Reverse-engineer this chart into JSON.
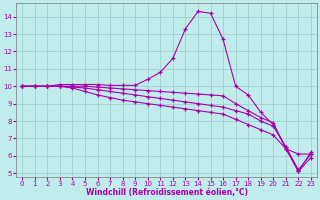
{
  "xlabel": "Windchill (Refroidissement éolien,°C)",
  "xlim": [
    -0.5,
    23.5
  ],
  "ylim": [
    4.8,
    14.8
  ],
  "xticks": [
    0,
    1,
    2,
    3,
    4,
    5,
    6,
    7,
    8,
    9,
    10,
    11,
    12,
    13,
    14,
    15,
    16,
    17,
    18,
    19,
    20,
    21,
    22,
    23
  ],
  "yticks": [
    5,
    6,
    7,
    8,
    9,
    10,
    11,
    12,
    13,
    14
  ],
  "bg_color": "#c0ecec",
  "line_color": "#aa00aa",
  "grid_color": "#99cccc",
  "lines": [
    {
      "x": [
        0,
        1,
        2,
        3,
        4,
        5,
        6,
        7,
        8,
        9,
        10,
        11,
        12,
        13,
        14,
        15,
        16,
        17,
        18,
        19,
        20,
        21,
        22,
        23
      ],
      "y": [
        10.0,
        10.0,
        10.0,
        10.1,
        10.1,
        10.1,
        10.1,
        10.05,
        10.05,
        10.05,
        10.4,
        10.8,
        11.6,
        13.3,
        14.3,
        14.2,
        12.7,
        10.0,
        9.5,
        8.5,
        7.8,
        6.5,
        5.1,
        6.2
      ]
    },
    {
      "x": [
        0,
        1,
        2,
        3,
        4,
        5,
        6,
        7,
        8,
        9,
        10,
        11,
        12,
        13,
        14,
        15,
        16,
        17,
        18,
        19,
        20,
        21,
        22,
        23
      ],
      "y": [
        10.0,
        10.0,
        10.0,
        10.0,
        10.0,
        10.0,
        9.95,
        9.9,
        9.85,
        9.8,
        9.75,
        9.7,
        9.65,
        9.6,
        9.55,
        9.5,
        9.45,
        9.0,
        8.6,
        8.2,
        7.9,
        6.4,
        6.1,
        6.1
      ]
    },
    {
      "x": [
        0,
        1,
        2,
        3,
        4,
        5,
        6,
        7,
        8,
        9,
        10,
        11,
        12,
        13,
        14,
        15,
        16,
        17,
        18,
        19,
        20,
        21,
        22,
        23
      ],
      "y": [
        10.0,
        10.0,
        10.0,
        10.0,
        9.95,
        9.9,
        9.8,
        9.7,
        9.6,
        9.5,
        9.4,
        9.3,
        9.2,
        9.1,
        9.0,
        8.9,
        8.8,
        8.6,
        8.4,
        8.0,
        7.7,
        6.5,
        5.2,
        6.1
      ]
    },
    {
      "x": [
        0,
        1,
        2,
        3,
        4,
        5,
        6,
        7,
        8,
        9,
        10,
        11,
        12,
        13,
        14,
        15,
        16,
        17,
        18,
        19,
        20,
        21,
        22,
        23
      ],
      "y": [
        10.0,
        10.0,
        10.0,
        10.0,
        9.9,
        9.7,
        9.5,
        9.35,
        9.2,
        9.1,
        9.0,
        8.9,
        8.8,
        8.7,
        8.6,
        8.5,
        8.4,
        8.1,
        7.8,
        7.5,
        7.2,
        6.4,
        5.1,
        5.9
      ]
    }
  ]
}
